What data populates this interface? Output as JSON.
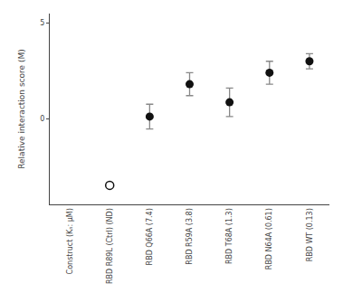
{
  "chart_data": {
    "type": "scatter",
    "categories": [
      "Construct (Kₙ: μM)",
      "RBD R89L (Ctrl) (ND)",
      "RBD Q66A (7.4)",
      "RBD R59A (3.8)",
      "RBD T68A (1.3)",
      "RBD N64A (0.61)",
      "RBD WT (0.13)"
    ],
    "series": [
      {
        "marker": "open_circle",
        "color": "#111111",
        "values": [
          null,
          -3.5,
          null,
          null,
          null,
          null,
          null
        ]
      },
      {
        "marker": "circle",
        "color": "#111111",
        "values": [
          null,
          null,
          0.1,
          1.8,
          0.85,
          2.4,
          3.0
        ],
        "errors": {
          "low": [
            null,
            null,
            0.65,
            0.6,
            0.75,
            0.6,
            0.4
          ],
          "high": [
            null,
            null,
            0.65,
            0.6,
            0.75,
            0.6,
            0.4
          ],
          "color": "#888888"
        }
      }
    ],
    "ylabel": "Relative interaction score (M)",
    "ylim": [
      -4.5,
      5.5
    ],
    "yticks": [
      0,
      5
    ],
    "grid": false,
    "legend": "none",
    "background_color": "#ffffff"
  }
}
